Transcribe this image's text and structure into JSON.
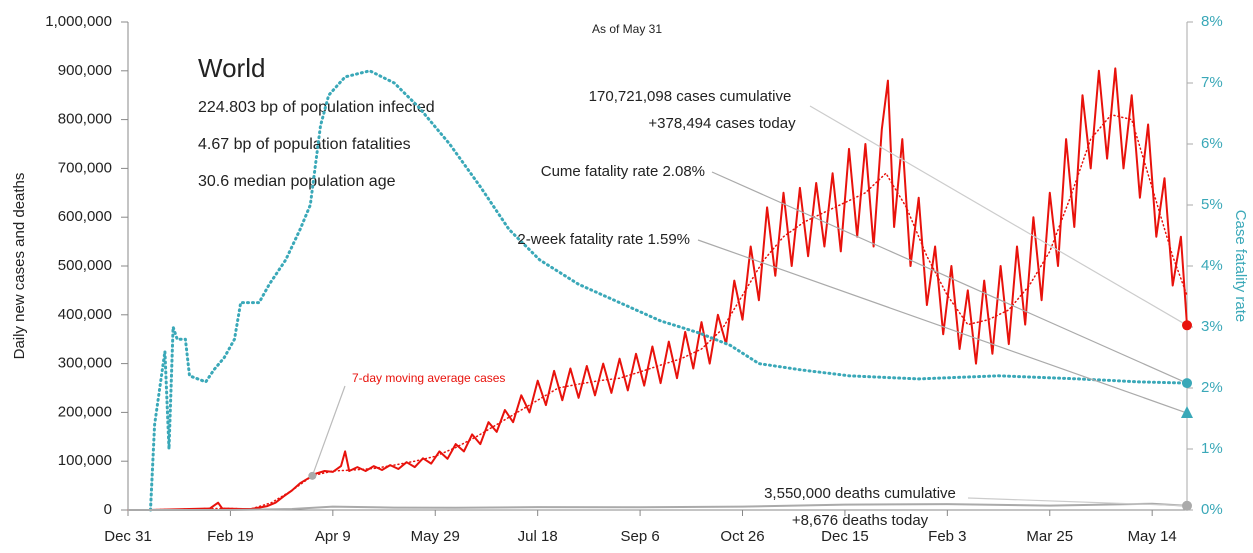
{
  "chart_data": {
    "type": "line",
    "subtitle": "As of May 31",
    "panel": {
      "title": "World",
      "lines": [
        "224.803 bp of population infected",
        "4.67 bp of population fatalities",
        "30.6 median population age"
      ]
    },
    "ylabel": "Daily new cases and deaths",
    "y2label": "Case fatality rate",
    "xlim": [
      0,
      517
    ],
    "xticks": [
      {
        "value": 0,
        "label": "Dec 31"
      },
      {
        "value": 50,
        "label": "Feb 19"
      },
      {
        "value": 100,
        "label": "Apr 9"
      },
      {
        "value": 150,
        "label": "May 29"
      },
      {
        "value": 200,
        "label": "Jul 18"
      },
      {
        "value": 250,
        "label": "Sep 6"
      },
      {
        "value": 300,
        "label": "Oct 26"
      },
      {
        "value": 350,
        "label": "Dec 15"
      },
      {
        "value": 400,
        "label": "Feb 3"
      },
      {
        "value": 450,
        "label": "Mar 25"
      },
      {
        "value": 500,
        "label": "May 14"
      }
    ],
    "ylim": [
      0,
      1000000
    ],
    "yticks": [
      0,
      {
        "value": 100000,
        "label": "100,000"
      },
      {
        "value": 200000,
        "label": "200,000"
      },
      {
        "value": 300000,
        "label": "300,000"
      },
      {
        "value": 400000,
        "label": "400,000"
      },
      {
        "value": 500000,
        "label": "500,000"
      },
      {
        "value": 600000,
        "label": "600,000"
      },
      {
        "value": 700000,
        "label": "700,000"
      },
      {
        "value": 800000,
        "label": "800,000"
      },
      {
        "value": 900000,
        "label": "900,000"
      },
      {
        "value": 1000000,
        "label": "1,000,000"
      }
    ],
    "y2lim": [
      0,
      8
    ],
    "y2ticks": [
      {
        "value": 0,
        "label": "0%"
      },
      {
        "value": 1,
        "label": "1%"
      },
      {
        "value": 2,
        "label": "2%"
      },
      {
        "value": 3,
        "label": "3%"
      },
      {
        "value": 4,
        "label": "4%"
      },
      {
        "value": 5,
        "label": "5%"
      },
      {
        "value": 6,
        "label": "6%"
      },
      {
        "value": 7,
        "label": "7%"
      },
      {
        "value": 8,
        "label": "8%"
      }
    ],
    "series": [
      {
        "color": "#e8120c",
        "style": "solid",
        "x": [
          0,
          10,
          20,
          30,
          40,
          44,
          46,
          56,
          60,
          64,
          68,
          72,
          76,
          80,
          84,
          88,
          92,
          96,
          100,
          104,
          106,
          108,
          112,
          116,
          120,
          124,
          128,
          132,
          136,
          140,
          144,
          148,
          152,
          156,
          160,
          164,
          168,
          172,
          176,
          180,
          184,
          188,
          192,
          196,
          200,
          204,
          208,
          212,
          216,
          220,
          224,
          228,
          232,
          236,
          240,
          244,
          248,
          252,
          256,
          260,
          264,
          268,
          272,
          276,
          280,
          284,
          288,
          292,
          296,
          300,
          304,
          308,
          312,
          316,
          320,
          324,
          328,
          332,
          336,
          340,
          344,
          348,
          352,
          356,
          360,
          364,
          368,
          371,
          374,
          378,
          382,
          386,
          390,
          394,
          398,
          402,
          406,
          410,
          414,
          418,
          422,
          426,
          430,
          434,
          438,
          442,
          446,
          450,
          454,
          458,
          462,
          466,
          470,
          474,
          478,
          482,
          486,
          490,
          494,
          498,
          502,
          506,
          510,
          514,
          517
        ],
        "values": [
          0,
          0,
          1000,
          2000,
          3000,
          15000,
          3000,
          2000,
          2000,
          5000,
          8000,
          15000,
          28000,
          40000,
          55000,
          65000,
          75000,
          80000,
          78000,
          90000,
          120000,
          80000,
          88000,
          80000,
          90000,
          82000,
          92000,
          84000,
          98000,
          88000,
          106000,
          95000,
          120000,
          105000,
          135000,
          120000,
          155000,
          135000,
          180000,
          160000,
          205000,
          180000,
          235000,
          200000,
          265000,
          215000,
          285000,
          225000,
          290000,
          230000,
          295000,
          235000,
          300000,
          240000,
          310000,
          245000,
          320000,
          255000,
          335000,
          260000,
          345000,
          270000,
          365000,
          290000,
          385000,
          300000,
          400000,
          340000,
          470000,
          390000,
          540000,
          430000,
          620000,
          480000,
          650000,
          500000,
          660000,
          520000,
          670000,
          540000,
          690000,
          530000,
          740000,
          560000,
          750000,
          540000,
          780000,
          880000,
          580000,
          760000,
          500000,
          640000,
          420000,
          540000,
          360000,
          500000,
          330000,
          450000,
          300000,
          470000,
          320000,
          500000,
          340000,
          540000,
          380000,
          600000,
          430000,
          650000,
          500000,
          760000,
          580000,
          850000,
          700000,
          900000,
          720000,
          905000,
          700000,
          850000,
          640000,
          790000,
          560000,
          680000,
          460000,
          560000,
          378494
        ]
      },
      {
        "name": "7-day moving average cases",
        "color": "#e8120c",
        "style": "dotted",
        "x": [
          0,
          10,
          20,
          30,
          40,
          50,
          60,
          70,
          80,
          90,
          100,
          110,
          120,
          130,
          140,
          150,
          160,
          170,
          180,
          190,
          200,
          210,
          220,
          230,
          240,
          250,
          260,
          270,
          280,
          290,
          300,
          310,
          320,
          330,
          340,
          350,
          360,
          370,
          380,
          390,
          400,
          410,
          420,
          430,
          440,
          450,
          460,
          470,
          480,
          490,
          500,
          510,
          517
        ],
        "values": [
          0,
          500,
          1000,
          2000,
          3000,
          3000,
          2000,
          15000,
          40000,
          70000,
          80000,
          82000,
          85000,
          92000,
          100000,
          110000,
          128000,
          150000,
          175000,
          200000,
          225000,
          250000,
          258000,
          265000,
          270000,
          283000,
          297000,
          310000,
          330000,
          370000,
          440000,
          510000,
          560000,
          590000,
          610000,
          630000,
          650000,
          690000,
          620000,
          520000,
          440000,
          380000,
          390000,
          410000,
          460000,
          530000,
          640000,
          760000,
          810000,
          800000,
          660000,
          520000,
          440000
        ]
      },
      {
        "color": "#3aa8b8",
        "style": "dotted",
        "axis": "y2",
        "x": [
          11,
          13,
          18,
          20,
          22,
          24,
          28,
          30,
          38,
          42,
          47,
          52,
          55,
          64,
          69,
          77,
          84,
          89,
          94,
          98,
          106,
          118,
          130,
          142,
          157,
          172,
          186,
          201,
          220,
          240,
          260,
          279,
          294,
          308,
          328,
          352,
          386,
          425,
          464,
          494,
          517
        ],
        "values": [
          0,
          1.4,
          2.6,
          1.0,
          3.0,
          2.8,
          2.8,
          2.2,
          2.1,
          2.3,
          2.5,
          2.8,
          3.4,
          3.4,
          3.7,
          4.1,
          4.6,
          5.0,
          6.3,
          6.8,
          7.1,
          7.2,
          7.0,
          6.6,
          6.0,
          5.3,
          4.6,
          4.1,
          3.7,
          3.4,
          3.1,
          2.9,
          2.7,
          2.4,
          2.3,
          2.2,
          2.15,
          2.2,
          2.15,
          2.1,
          2.08
        ]
      },
      {
        "color": "#aaaaaa",
        "style": "solid",
        "x": [
          0,
          50,
          80,
          100,
          130,
          160,
          200,
          250,
          300,
          350,
          400,
          450,
          500,
          517
        ],
        "values": [
          0,
          100,
          2000,
          7000,
          5000,
          4500,
          6000,
          5500,
          7000,
          11000,
          12000,
          9000,
          13000,
          8676
        ]
      }
    ],
    "annotations": [
      {
        "lines": [
          "170,721,098 cases cumulative",
          "+378,494 cases today"
        ]
      },
      {
        "lines": [
          "Cume fatality rate 2.08%"
        ]
      },
      {
        "lines": [
          "2-week fatality rate 1.59%"
        ],
        "value": 1.59,
        "axis": "y2",
        "color": "#3aa8b8"
      },
      {
        "lines": [
          "3,550,000 deaths cumulative",
          "+8,676 deaths today"
        ]
      }
    ]
  }
}
